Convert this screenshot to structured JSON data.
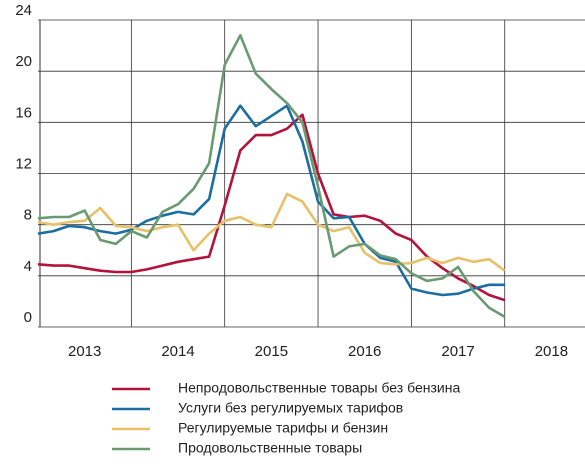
{
  "chart_data": {
    "type": "line",
    "x": [
      2013.0,
      2013.167,
      2013.333,
      2013.5,
      2013.667,
      2013.833,
      2014.0,
      2014.167,
      2014.333,
      2014.5,
      2014.667,
      2014.833,
      2015.0,
      2015.167,
      2015.333,
      2015.5,
      2015.667,
      2015.833,
      2016.0,
      2016.167,
      2016.333,
      2016.5,
      2016.667,
      2016.833,
      2017.0,
      2017.167,
      2017.333,
      2017.5,
      2017.667,
      2017.833,
      2018.0
    ],
    "series": [
      {
        "name": "Непродовольственные товары без бензина",
        "color": "#b5123a",
        "values": [
          4.9,
          4.8,
          4.8,
          4.6,
          4.4,
          4.3,
          4.3,
          4.5,
          4.8,
          5.1,
          5.3,
          5.5,
          9.5,
          13.8,
          15.0,
          15.0,
          15.5,
          16.6,
          12.0,
          8.8,
          8.6,
          8.7,
          8.3,
          7.3,
          6.8,
          5.5,
          4.6,
          3.8,
          3.2,
          2.5,
          2.1
        ]
      },
      {
        "name": "Услуги без регулируемых тарифов",
        "color": "#1a6fa0",
        "values": [
          7.3,
          7.5,
          7.9,
          7.8,
          7.5,
          7.3,
          7.6,
          8.3,
          8.7,
          9.0,
          8.8,
          10.0,
          15.5,
          17.3,
          15.7,
          16.5,
          17.3,
          14.5,
          9.8,
          8.5,
          8.6,
          6.5,
          5.4,
          5.1,
          3.0,
          2.7,
          2.5,
          2.6,
          3.0,
          3.3,
          3.3
        ]
      },
      {
        "name": "Регулируемые тарифы и бензин",
        "color": "#e8c068",
        "values": [
          8.2,
          8.0,
          8.2,
          8.3,
          9.3,
          7.9,
          7.8,
          7.5,
          7.8,
          8.0,
          6.0,
          7.3,
          8.3,
          8.6,
          8.0,
          7.8,
          10.4,
          9.8,
          8.0,
          7.5,
          7.8,
          5.8,
          5.0,
          4.9,
          5.0,
          5.4,
          5.0,
          5.4,
          5.1,
          5.3,
          4.4
        ]
      },
      {
        "name": "Продовольственные товары",
        "color": "#6a9a72",
        "values": [
          8.5,
          8.6,
          8.6,
          9.1,
          6.8,
          6.5,
          7.5,
          7.0,
          9.0,
          9.6,
          10.8,
          12.8,
          20.5,
          22.8,
          19.8,
          18.6,
          17.5,
          16.0,
          11.0,
          5.5,
          6.3,
          6.5,
          5.6,
          5.3,
          4.2,
          3.6,
          3.8,
          4.7,
          2.8,
          1.5,
          0.8
        ]
      }
    ],
    "xlim": [
      2013,
      2018.86
    ],
    "xticks": [
      {
        "value": 2013.5,
        "label": "2013"
      },
      {
        "value": 2014.5,
        "label": "2014"
      },
      {
        "value": 2015.5,
        "label": "2015"
      },
      {
        "value": 2016.5,
        "label": "2016"
      },
      {
        "value": 2017.5,
        "label": "2017"
      },
      {
        "value": 2018.5,
        "label": "2018"
      }
    ],
    "xgrid": [
      2014,
      2015,
      2016,
      2017,
      2018
    ],
    "ylim": [
      0,
      24
    ],
    "yticks": [
      0,
      4,
      8,
      12,
      16,
      20,
      24
    ],
    "grid": true
  }
}
